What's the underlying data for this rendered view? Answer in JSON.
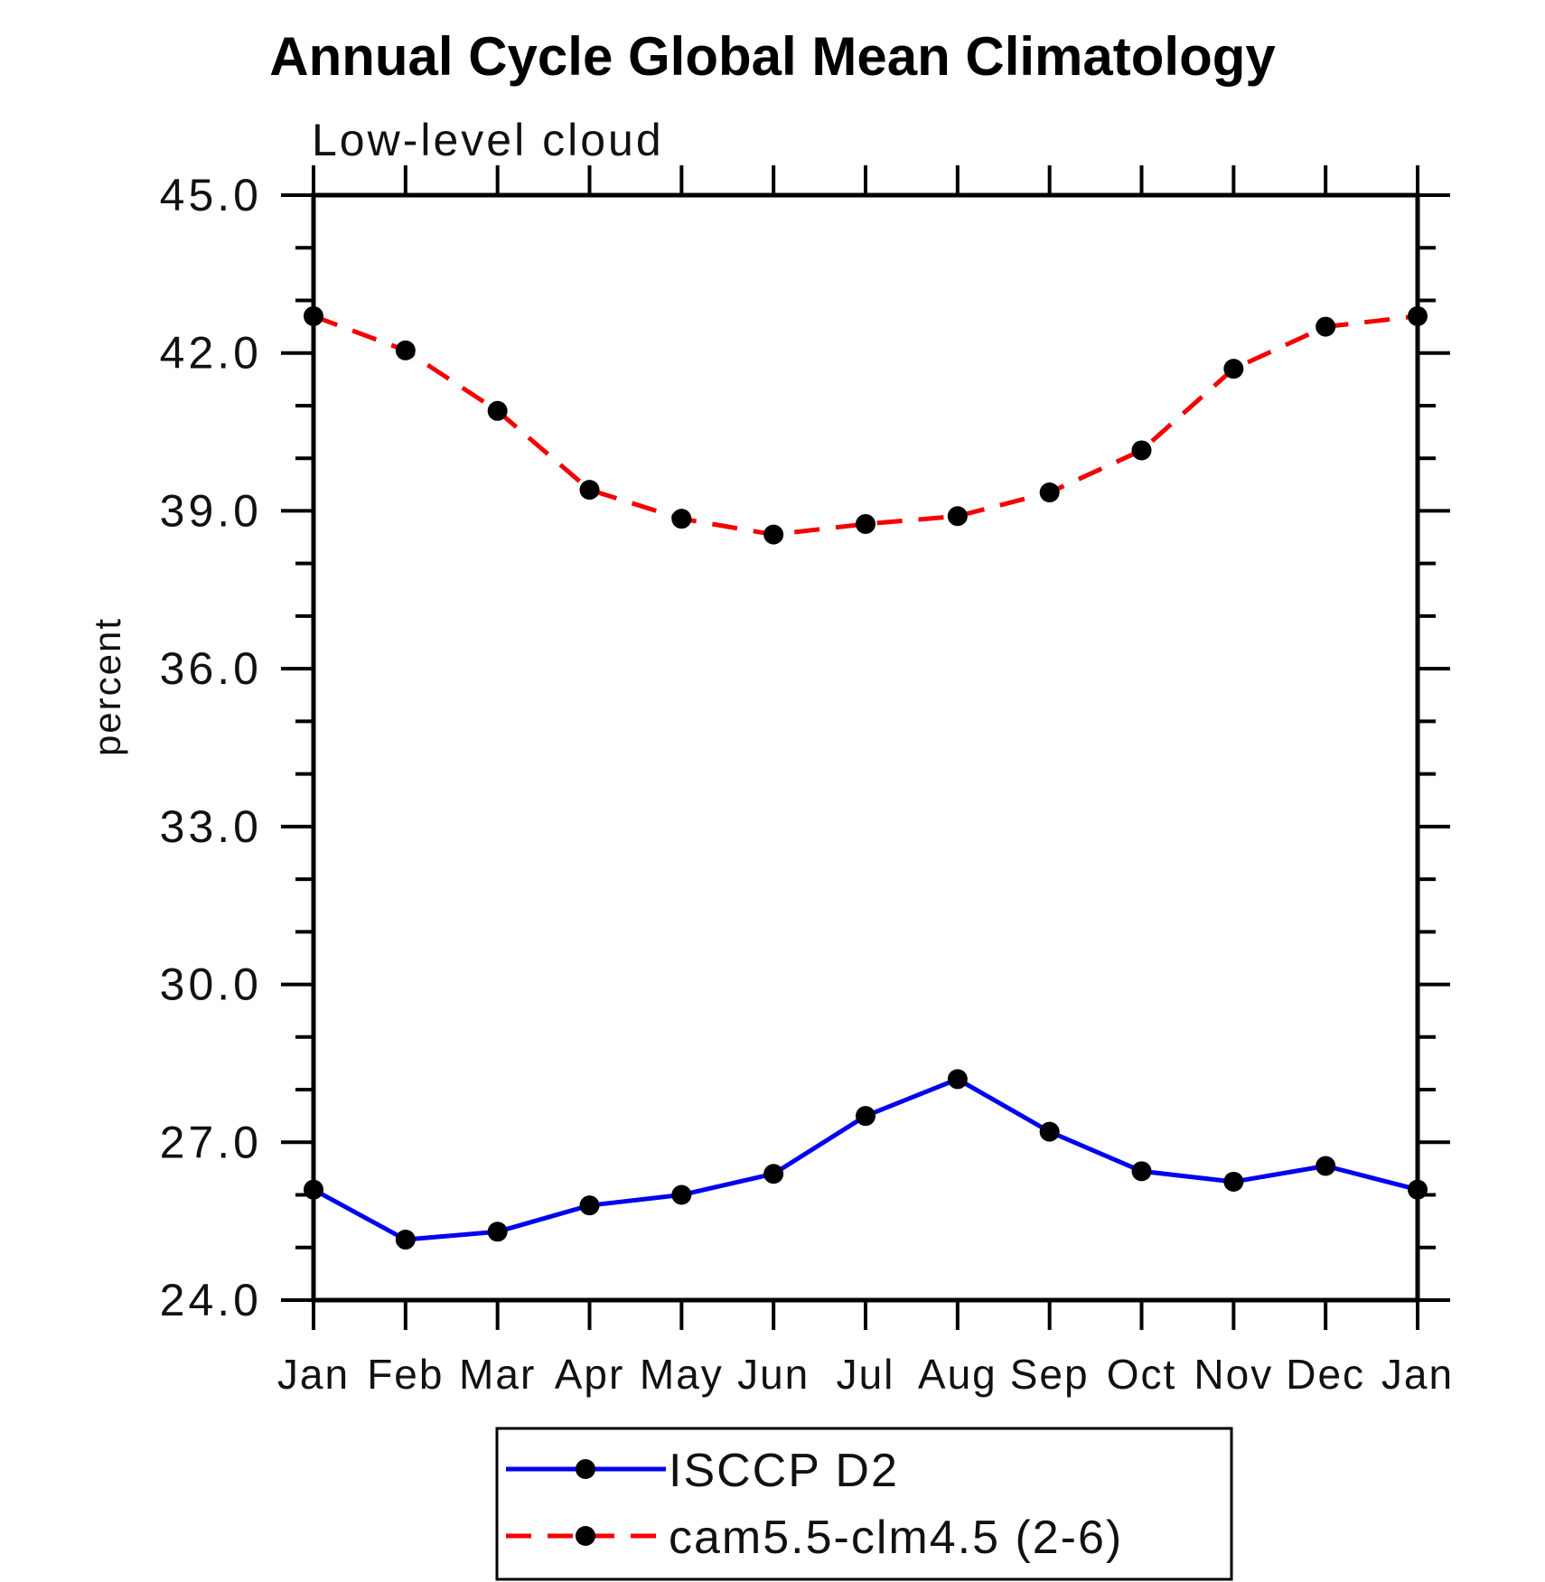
{
  "chart_data": {
    "type": "line",
    "title": "Annual Cycle Global Mean Climatology",
    "subtitle": "Low-level cloud",
    "ylabel": "percent",
    "xlabel": "",
    "categories": [
      "Jan",
      "Feb",
      "Mar",
      "Apr",
      "May",
      "Jun",
      "Jul",
      "Aug",
      "Sep",
      "Oct",
      "Nov",
      "Dec",
      "Jan"
    ],
    "series": [
      {
        "name": "ISCCP D2",
        "line_style": "solid",
        "color": "#0000f0",
        "marker": "circle",
        "marker_color": "#000000",
        "values": [
          26.1,
          25.15,
          25.3,
          25.8,
          26.0,
          26.4,
          27.5,
          28.2,
          27.2,
          26.45,
          26.25,
          26.55,
          26.1
        ]
      },
      {
        "name": "cam5.5-clm4.5 (2-6)",
        "line_style": "dashed",
        "color": "#f40000",
        "marker": "circle",
        "marker_color": "#000000",
        "values": [
          42.7,
          42.05,
          40.9,
          39.4,
          38.85,
          38.55,
          38.75,
          38.9,
          39.35,
          40.15,
          41.7,
          42.5,
          42.7
        ]
      }
    ],
    "ylim": [
      24,
      45
    ],
    "yticks_major": [
      24,
      27,
      30,
      33,
      36,
      39,
      42,
      45
    ],
    "ytick_labels": [
      "24.0",
      "27.0",
      "30.0",
      "33.0",
      "36.0",
      "39.0",
      "42.0",
      "45.0"
    ],
    "yminor_step": 1,
    "grid": false,
    "legend_position": "bottom-center",
    "frame_color": "#000000"
  }
}
